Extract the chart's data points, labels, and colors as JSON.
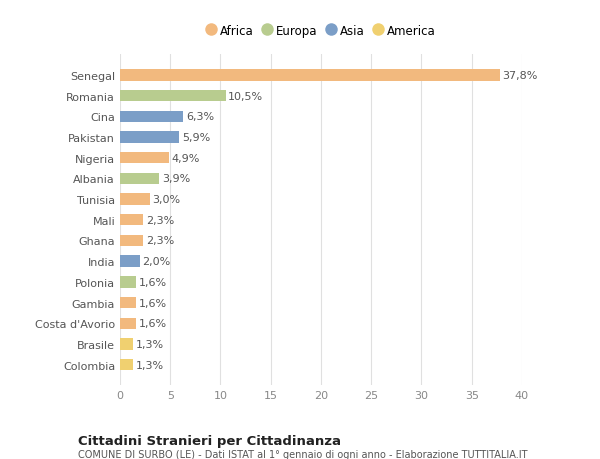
{
  "countries": [
    "Senegal",
    "Romania",
    "Cina",
    "Pakistan",
    "Nigeria",
    "Albania",
    "Tunisia",
    "Mali",
    "Ghana",
    "India",
    "Polonia",
    "Gambia",
    "Costa d'Avorio",
    "Brasile",
    "Colombia"
  ],
  "values": [
    37.8,
    10.5,
    6.3,
    5.9,
    4.9,
    3.9,
    3.0,
    2.3,
    2.3,
    2.0,
    1.6,
    1.6,
    1.6,
    1.3,
    1.3
  ],
  "labels": [
    "37,8%",
    "10,5%",
    "6,3%",
    "5,9%",
    "4,9%",
    "3,9%",
    "3,0%",
    "2,3%",
    "2,3%",
    "2,0%",
    "1,6%",
    "1,6%",
    "1,6%",
    "1,3%",
    "1,3%"
  ],
  "continents": [
    "Africa",
    "Europa",
    "Asia",
    "Asia",
    "Africa",
    "Europa",
    "Africa",
    "Africa",
    "Africa",
    "Asia",
    "Europa",
    "Africa",
    "Africa",
    "America",
    "America"
  ],
  "continent_colors": {
    "Africa": "#F2B97E",
    "Europa": "#B8CC8F",
    "Asia": "#7B9EC7",
    "America": "#F0D070"
  },
  "legend_order": [
    "Africa",
    "Europa",
    "Asia",
    "America"
  ],
  "xlim": [
    0,
    40
  ],
  "xticks": [
    0,
    5,
    10,
    15,
    20,
    25,
    30,
    35,
    40
  ],
  "title": "Cittadini Stranieri per Cittadinanza",
  "subtitle": "COMUNE DI SURBO (LE) - Dati ISTAT al 1° gennaio di ogni anno - Elaborazione TUTTITALIA.IT",
  "background_color": "#ffffff",
  "plot_bg_color": "#ffffff",
  "grid_color": "#e0e0e0",
  "label_fontsize": 8,
  "tick_fontsize": 8,
  "bar_height": 0.55
}
